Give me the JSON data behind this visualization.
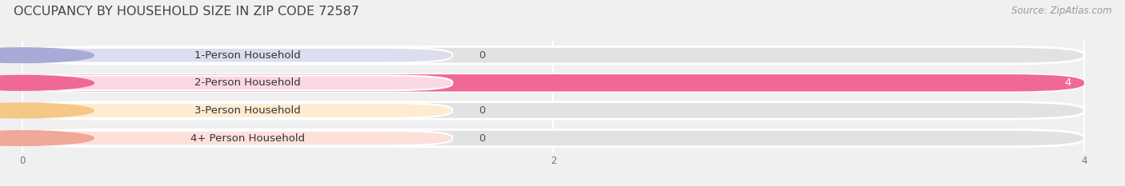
{
  "title": "OCCUPANCY BY HOUSEHOLD SIZE IN ZIP CODE 72587",
  "source": "Source: ZipAtlas.com",
  "categories": [
    "1-Person Household",
    "2-Person Household",
    "3-Person Household",
    "4+ Person Household"
  ],
  "values": [
    0,
    4,
    0,
    0
  ],
  "bar_colors": [
    "#a8aad8",
    "#f06898",
    "#f5c888",
    "#f0a898"
  ],
  "label_pill_colors": [
    "#ddddf0",
    "#fad8e4",
    "#fdecd0",
    "#fde0dc"
  ],
  "xlim_data": [
    0,
    4
  ],
  "xticks": [
    0,
    2,
    4
  ],
  "background_color": "#f0f0f0",
  "bar_bg_color": "#e2e2e2",
  "title_fontsize": 11.5,
  "source_fontsize": 8.5,
  "label_fontsize": 9.5,
  "value_fontsize": 9.5
}
